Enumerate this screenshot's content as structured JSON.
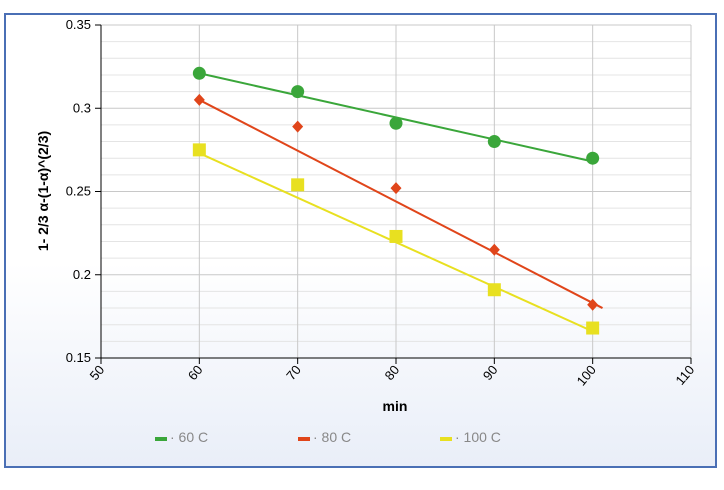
{
  "chart_data": {
    "type": "scatter",
    "title": "",
    "xlabel": "min",
    "ylabel": "1- 2/3 α-(1-α)^(2/3)",
    "xlim": [
      50,
      110
    ],
    "ylim": [
      0.15,
      0.35
    ],
    "x_ticks": [
      "50",
      "60",
      "70",
      "80",
      "90",
      "100",
      "110"
    ],
    "y_ticks": [
      "0.15",
      "0.2",
      "0.25",
      "0.3",
      "0.35"
    ],
    "grid": true,
    "legend_placement": "bottom",
    "series": [
      {
        "name": "60 C",
        "color": "#3aa63a",
        "marker": "circle",
        "x": [
          60,
          70,
          80,
          90,
          100
        ],
        "y": [
          0.321,
          0.31,
          0.291,
          0.28,
          0.27
        ],
        "trendline": [
          [
            60,
            0.321
          ],
          [
            100,
            0.268
          ]
        ]
      },
      {
        "name": "80 C",
        "color": "#e0451a",
        "marker": "diamond",
        "x": [
          60,
          70,
          80,
          90,
          100
        ],
        "y": [
          0.305,
          0.289,
          0.252,
          0.215,
          0.182
        ],
        "trendline": [
          [
            60,
            0.305
          ],
          [
            101,
            0.18
          ]
        ]
      },
      {
        "name": "100 C",
        "color": "#e8e020",
        "marker": "square",
        "x": [
          60,
          70,
          80,
          90,
          100
        ],
        "y": [
          0.275,
          0.254,
          0.223,
          0.191,
          0.168
        ],
        "trendline": [
          [
            60,
            0.273
          ],
          [
            100,
            0.166
          ]
        ]
      }
    ]
  }
}
